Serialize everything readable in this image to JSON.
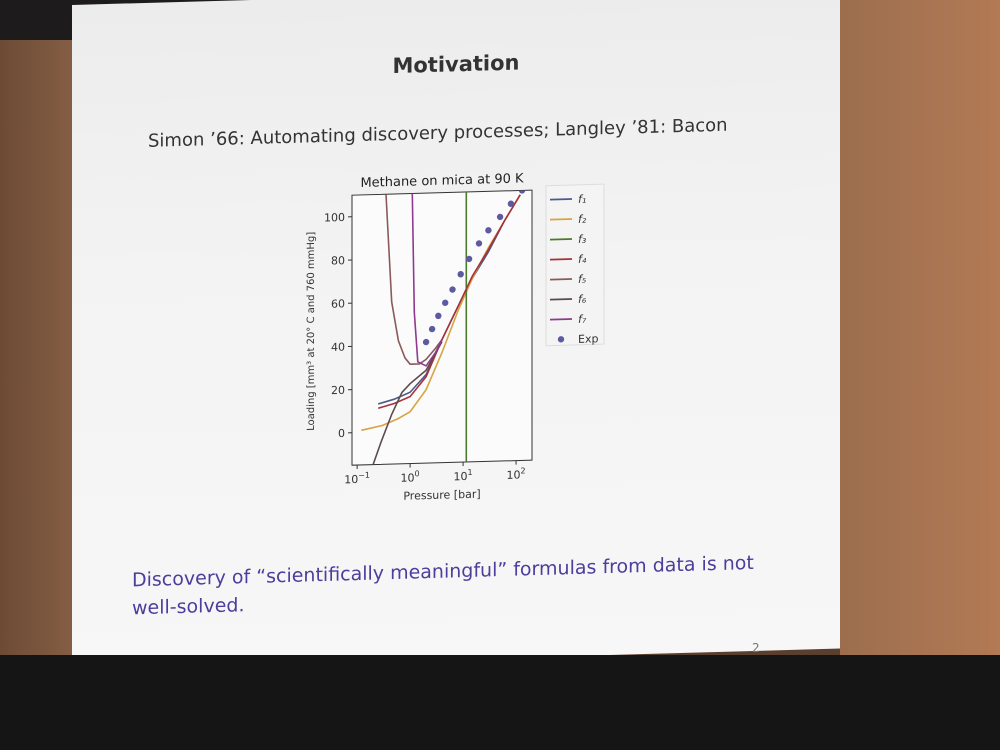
{
  "slide": {
    "title": "Motivation",
    "subtitle": "Simon ’66: Automating discovery processes;   Langley ’81: Bacon",
    "footer": "Discovery of “scientifically meaningful” formulas from data is not well-solved.",
    "page_number": "2"
  },
  "chart_data": {
    "type": "line",
    "title": "Methane on mica at 90 K",
    "xlabel": "Pressure [bar]",
    "ylabel": "Loading [mm³ at 20° C and 760 mmHg]",
    "xscale": "log",
    "xlim": [
      0.08,
      200
    ],
    "ylim": [
      -15,
      110
    ],
    "x_ticks": [
      {
        "value": 0.1,
        "base": "10",
        "exp": "−1"
      },
      {
        "value": 1,
        "base": "10",
        "exp": "0"
      },
      {
        "value": 10,
        "base": "10",
        "exp": "1"
      },
      {
        "value": 100,
        "base": "10",
        "exp": "2"
      }
    ],
    "y_ticks": [
      {
        "value": 0,
        "label": "0"
      },
      {
        "value": 20,
        "label": "20"
      },
      {
        "value": 40,
        "label": "40"
      },
      {
        "value": 60,
        "label": "60"
      },
      {
        "value": 80,
        "label": "80"
      },
      {
        "value": 100,
        "label": "100"
      }
    ],
    "legend_position": "right",
    "series": [
      {
        "name": "f₁",
        "color": "#4b5b8a",
        "points": [
          [
            0.25,
            13
          ],
          [
            0.5,
            15
          ],
          [
            1,
            18
          ],
          [
            2,
            26
          ],
          [
            4,
            42
          ],
          [
            8,
            57
          ],
          [
            15,
            70
          ],
          [
            30,
            82
          ],
          [
            60,
            96
          ],
          [
            120,
            108
          ]
        ]
      },
      {
        "name": "f₂",
        "color": "#d8a340",
        "points": [
          [
            0.12,
            1
          ],
          [
            0.3,
            3
          ],
          [
            0.6,
            6
          ],
          [
            1,
            9
          ],
          [
            2,
            19
          ],
          [
            4,
            36
          ],
          [
            8,
            55
          ],
          [
            15,
            70
          ],
          [
            30,
            84
          ],
          [
            60,
            96
          ],
          [
            120,
            108
          ]
        ]
      },
      {
        "name": "f₃",
        "color": "#4c7a2e",
        "points": [
          [
            11.5,
            -15
          ],
          [
            11.5,
            110
          ]
        ]
      },
      {
        "name": "f₄",
        "color": "#a63238",
        "points": [
          [
            0.25,
            11
          ],
          [
            0.5,
            13
          ],
          [
            1,
            16
          ],
          [
            2,
            25
          ],
          [
            4,
            42
          ],
          [
            8,
            57
          ],
          [
            15,
            71
          ],
          [
            30,
            83
          ],
          [
            60,
            96
          ],
          [
            120,
            108
          ]
        ]
      },
      {
        "name": "f₅",
        "color": "#8a5a5a",
        "points": [
          [
            0.35,
            110
          ],
          [
            0.45,
            60
          ],
          [
            0.6,
            42
          ],
          [
            0.8,
            34
          ],
          [
            1,
            31
          ],
          [
            1.5,
            31
          ],
          [
            2,
            33
          ],
          [
            3,
            38
          ],
          [
            4,
            42
          ]
        ]
      },
      {
        "name": "f₆",
        "color": "#5e4a4a",
        "points": [
          [
            0.2,
            -15
          ],
          [
            0.28,
            -5
          ],
          [
            0.45,
            8
          ],
          [
            0.7,
            18
          ],
          [
            1,
            22
          ],
          [
            2,
            28
          ],
          [
            4,
            41
          ]
        ]
      },
      {
        "name": "f₇",
        "color": "#8e3a8e",
        "points": [
          [
            1.1,
            110
          ],
          [
            1.2,
            55
          ],
          [
            1.4,
            32
          ],
          [
            2,
            30
          ],
          [
            3,
            36
          ],
          [
            4,
            42
          ]
        ]
      }
    ],
    "exp": {
      "name": "Exp",
      "color": "#5d5aa0",
      "points": [
        [
          2,
          41
        ],
        [
          2.6,
          47
        ],
        [
          3.4,
          53
        ],
        [
          4.6,
          59
        ],
        [
          6.3,
          65
        ],
        [
          9,
          72
        ],
        [
          13,
          79
        ],
        [
          20,
          86
        ],
        [
          30,
          92
        ],
        [
          50,
          98
        ],
        [
          80,
          104
        ],
        [
          130,
          110
        ]
      ]
    }
  }
}
